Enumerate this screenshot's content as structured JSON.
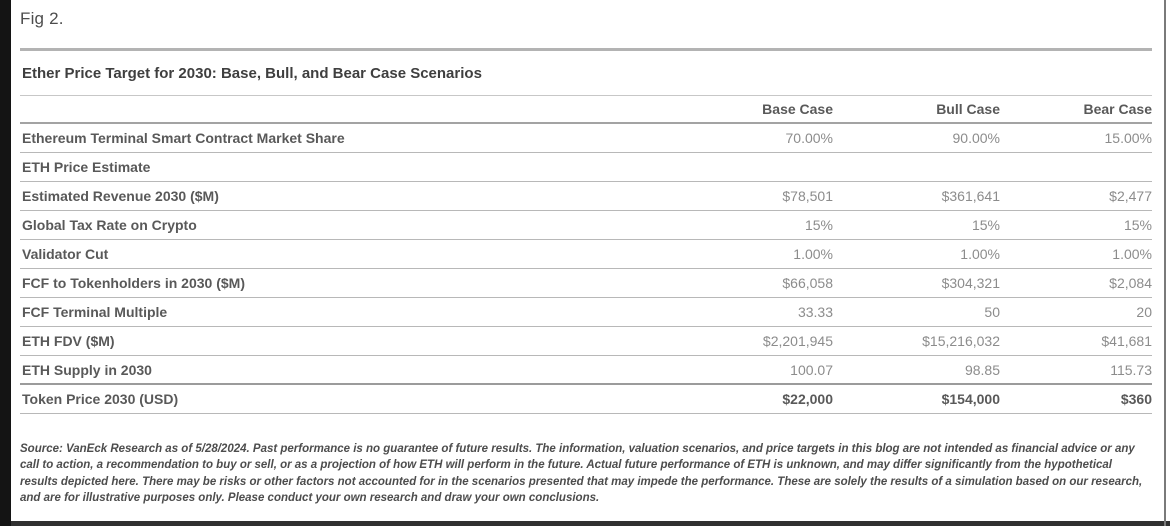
{
  "figure": {
    "label": "Fig 2."
  },
  "table": {
    "title": "Ether Price Target for 2030: Base, Bull, and Bear Case Scenarios",
    "columns": [
      "",
      "Base Case",
      "Bull Case",
      "Bear Case"
    ],
    "rows": [
      {
        "label": "Ethereum Terminal Smart Contract Market Share",
        "base": "70.00%",
        "bull": "90.00%",
        "bear": "15.00%"
      },
      {
        "label": "ETH Price Estimate",
        "base": "",
        "bull": "",
        "bear": ""
      },
      {
        "label": "Estimated Revenue 2030 ($M)",
        "base": "$78,501",
        "bull": "$361,641",
        "bear": "$2,477"
      },
      {
        "label": "Global Tax Rate on Crypto",
        "base": "15%",
        "bull": "15%",
        "bear": "15%"
      },
      {
        "label": "Validator Cut",
        "base": "1.00%",
        "bull": "1.00%",
        "bear": "1.00%"
      },
      {
        "label": "FCF to Tokenholders in 2030 ($M)",
        "base": "$66,058",
        "bull": "$304,321",
        "bear": "$2,084"
      },
      {
        "label": "FCF Terminal Multiple",
        "base": "33.33",
        "bull": "50",
        "bear": "20"
      },
      {
        "label": "ETH FDV ($M)",
        "base": "$2,201,945",
        "bull": "$15,216,032",
        "bear": "$41,681"
      },
      {
        "label": "ETH Supply in 2030",
        "base": "100.07",
        "bull": "98.85",
        "bear": "115.73"
      },
      {
        "label": "Token Price 2030 (USD)",
        "base": "$22,000",
        "bull": "$154,000",
        "bear": "$360"
      }
    ]
  },
  "footer": {
    "disclaimer": "Source: VanEck Research as of 5/28/2024. Past performance is no guarantee of future results. The information, valuation scenarios, and price targets in this blog are not intended as financial advice or any call to action, a recommendation to buy or sell, or as a projection of how ETH will perform in the future. Actual future performance of ETH is unknown, and may differ significantly from the hypothetical results depicted here. There may be risks or other factors not accounted for in the scenarios presented that may impede the performance. These are solely the results of a simulation based on our research, and are for illustrative purposes only. Please conduct your own research and draw your own conclusions."
  }
}
